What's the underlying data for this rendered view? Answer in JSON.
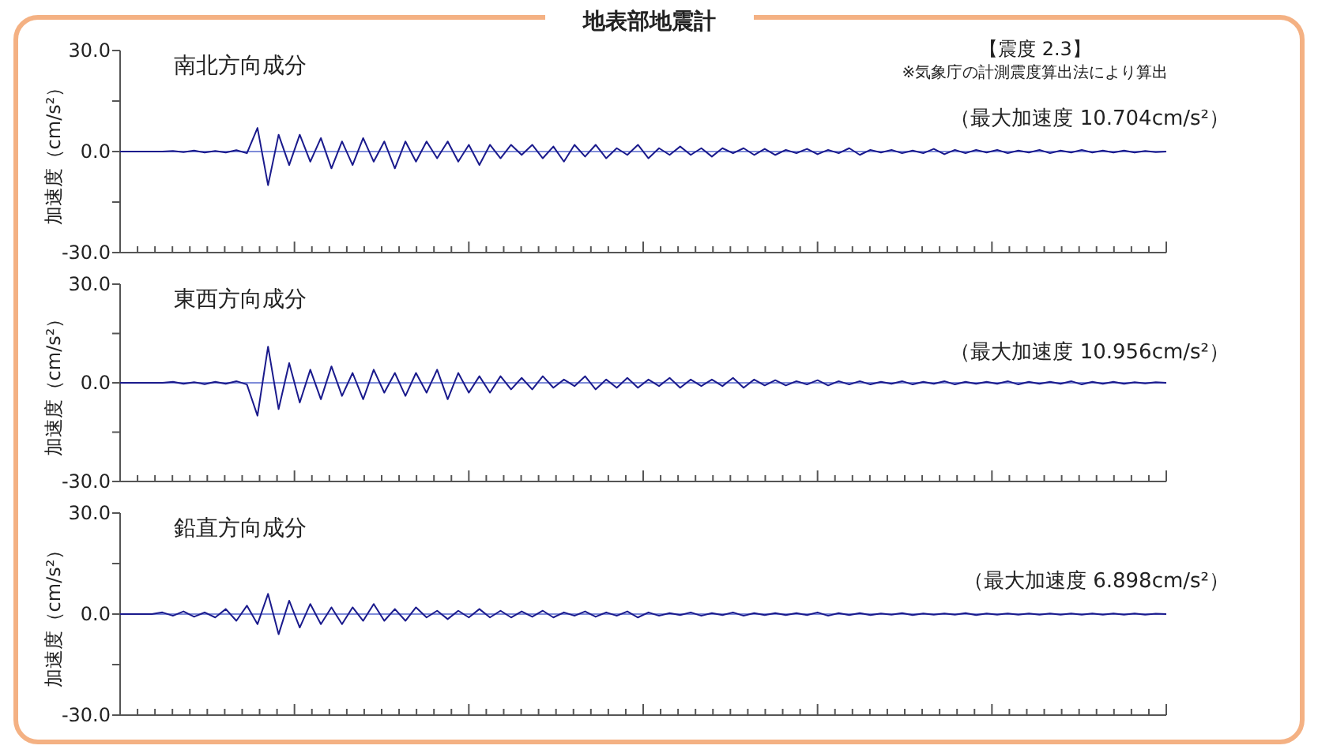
{
  "chart_data": [
    {
      "type": "line",
      "title": "南北方向成分",
      "ref_lines": [
        {
          "axis": "y",
          "value": 0,
          "color": "#5566cc"
        }
      ],
      "ylabel": "加速度（cm/s²）",
      "color": "#1a1a8c",
      "tick_labels": "y",
      "annotations": [
        "（最大加速度 10.704cm/s²）",
        "地表部地震計",
        "【震度 2.3】",
        "※気象庁の計測震度算出法により算出"
      ],
      "ylim": [
        -30,
        30
      ],
      "yticks": [
        {
          "value": -30,
          "label": "-30.0"
        },
        {
          "value": -15,
          "label": null
        },
        {
          "value": 0,
          "label": "0.0"
        },
        {
          "value": 15,
          "label": null
        },
        {
          "value": 30,
          "label": "30.0"
        }
      ],
      "categories": [
        null,
        null,
        null,
        null,
        null,
        null,
        null,
        null,
        null,
        null,
        null,
        null,
        null,
        null,
        null,
        null,
        null,
        null,
        null,
        null,
        null,
        null,
        null,
        null,
        null,
        null,
        null,
        null,
        null,
        null,
        null,
        null,
        null,
        null,
        null,
        null,
        null,
        null,
        null,
        null,
        null,
        null,
        null,
        null,
        null,
        null,
        null,
        null,
        null,
        null,
        null,
        null,
        null,
        null,
        null,
        null,
        null,
        null,
        null,
        null,
        null,
        null,
        null,
        null,
        null,
        null,
        null,
        null,
        null,
        null,
        null,
        null,
        null,
        null,
        null,
        null,
        null,
        null,
        null,
        null,
        null,
        null,
        null,
        null,
        null,
        null,
        null,
        null,
        null,
        null,
        null,
        null,
        null,
        null,
        null,
        null,
        null,
        null,
        null,
        null
      ],
      "values": [
        0,
        0,
        0,
        0,
        0,
        0.2,
        -0.2,
        0.3,
        -0.3,
        0.2,
        -0.3,
        0.4,
        -0.5,
        7,
        -10,
        5,
        -4,
        5,
        -3,
        4,
        -5,
        3,
        -4,
        4,
        -3,
        3,
        -5,
        3,
        -3,
        3,
        -2,
        3,
        -3,
        2,
        -4,
        2,
        -2,
        2,
        -1,
        2,
        -2,
        1.5,
        -3,
        2,
        -1.5,
        2,
        -2,
        1,
        -1,
        2,
        -2,
        1,
        -1,
        1.5,
        -1,
        1,
        -1.5,
        1,
        -0.5,
        1,
        -1,
        0.8,
        -1,
        0.5,
        -0.5,
        0.8,
        -0.8,
        0.5,
        -0.5,
        1,
        -1,
        0.5,
        -0.3,
        0.5,
        -0.5,
        0.3,
        -0.5,
        0.8,
        -0.8,
        0.5,
        -0.5,
        0.5,
        -0.3,
        0.5,
        -0.5,
        0.3,
        -0.3,
        0.5,
        -0.5,
        0.3,
        -0.3,
        0.5,
        -0.3,
        0.3,
        -0.3,
        0.3,
        -0.3,
        0.2,
        -0.2,
        0
      ]
    },
    {
      "type": "line",
      "title": "東西方向成分",
      "ref_lines": [
        {
          "axis": "y",
          "value": 0,
          "color": "#5566cc"
        }
      ],
      "ylabel": "加速度（cm/s²）",
      "color": "#1a1a8c",
      "tick_labels": "y",
      "annotations": [
        "（最大加速度 10.956cm/s²）"
      ],
      "ylim": [
        -30,
        30
      ],
      "yticks": [
        {
          "value": -30,
          "label": "-30.0"
        },
        {
          "value": -15,
          "label": null
        },
        {
          "value": 0,
          "label": "0.0"
        },
        {
          "value": 15,
          "label": null
        },
        {
          "value": 30,
          "label": "30.0"
        }
      ],
      "categories": [
        null,
        null,
        null,
        null,
        null,
        null,
        null,
        null,
        null,
        null,
        null,
        null,
        null,
        null,
        null,
        null,
        null,
        null,
        null,
        null,
        null,
        null,
        null,
        null,
        null,
        null,
        null,
        null,
        null,
        null,
        null,
        null,
        null,
        null,
        null,
        null,
        null,
        null,
        null,
        null,
        null,
        null,
        null,
        null,
        null,
        null,
        null,
        null,
        null,
        null,
        null,
        null,
        null,
        null,
        null,
        null,
        null,
        null,
        null,
        null,
        null,
        null,
        null,
        null,
        null,
        null,
        null,
        null,
        null,
        null,
        null,
        null,
        null,
        null,
        null,
        null,
        null,
        null,
        null,
        null,
        null,
        null,
        null,
        null,
        null,
        null,
        null,
        null,
        null,
        null,
        null,
        null,
        null,
        null,
        null,
        null,
        null,
        null,
        null,
        null
      ],
      "values": [
        0,
        0,
        0,
        0,
        0,
        0.3,
        -0.3,
        0.2,
        -0.4,
        0.3,
        -0.3,
        0.5,
        -0.5,
        -10,
        11,
        -8,
        6,
        -6,
        4,
        -5,
        5,
        -4,
        3,
        -5,
        4,
        -3,
        3,
        -4,
        3,
        -3,
        4,
        -5,
        3,
        -3,
        2,
        -3,
        2,
        -2,
        1.5,
        -2,
        2,
        -1.5,
        1,
        -1,
        2,
        -2,
        1,
        -1.5,
        1.5,
        -1.5,
        1,
        -1,
        1.5,
        -1.5,
        1,
        -1,
        1,
        -1,
        1.5,
        -1.5,
        1,
        -0.8,
        0.8,
        -0.8,
        0.5,
        -0.5,
        0.8,
        -0.8,
        0.5,
        -0.5,
        0.5,
        -0.5,
        0.3,
        -0.3,
        0.5,
        -0.5,
        0.3,
        -0.3,
        0.5,
        -0.5,
        0.3,
        -0.3,
        0.3,
        -0.3,
        0.5,
        -0.5,
        0.3,
        -0.3,
        0.3,
        -0.3,
        0.5,
        -0.5,
        0.3,
        -0.3,
        0.3,
        -0.3,
        0.2,
        -0.2,
        0.2,
        0
      ]
    },
    {
      "type": "line",
      "title": "鉛直方向成分",
      "ref_lines": [
        {
          "axis": "y",
          "value": 0,
          "color": "#5566cc"
        }
      ],
      "ylabel": "加速度（cm/s²）",
      "color": "#1a1a8c",
      "tick_labels": "y",
      "annotations": [
        "（最大加速度 6.898cm/s²）"
      ],
      "ylim": [
        -30,
        30
      ],
      "yticks": [
        {
          "value": -30,
          "label": "-30.0"
        },
        {
          "value": -15,
          "label": null
        },
        {
          "value": 0,
          "label": "0.0"
        },
        {
          "value": 15,
          "label": null
        },
        {
          "value": 30,
          "label": "30.0"
        }
      ],
      "categories": [
        null,
        null,
        null,
        null,
        null,
        null,
        null,
        null,
        null,
        null,
        null,
        null,
        null,
        null,
        null,
        null,
        null,
        null,
        null,
        null,
        null,
        null,
        null,
        null,
        null,
        null,
        null,
        null,
        null,
        null,
        null,
        null,
        null,
        null,
        null,
        null,
        null,
        null,
        null,
        null,
        null,
        null,
        null,
        null,
        null,
        null,
        null,
        null,
        null,
        null,
        null,
        null,
        null,
        null,
        null,
        null,
        null,
        null,
        null,
        null,
        null,
        null,
        null,
        null,
        null,
        null,
        null,
        null,
        null,
        null,
        null,
        null,
        null,
        null,
        null,
        null,
        null,
        null,
        null,
        null,
        null,
        null,
        null,
        null,
        null,
        null,
        null,
        null,
        null,
        null,
        null,
        null,
        null,
        null,
        null,
        null,
        null,
        null,
        null,
        null
      ],
      "values": [
        0,
        0,
        0,
        0,
        0.5,
        -0.5,
        0.8,
        -0.8,
        0.5,
        -1,
        1.5,
        -2,
        2.5,
        -3,
        6,
        -6,
        4,
        -4,
        3,
        -3,
        2,
        -3,
        2,
        -2,
        3,
        -2,
        1.5,
        -2,
        2,
        -1,
        1,
        -1.5,
        1,
        -1,
        1.5,
        -1,
        1,
        -1,
        0.8,
        -0.8,
        1,
        -1,
        0.5,
        -0.5,
        0.8,
        -0.8,
        0.5,
        -0.5,
        0.8,
        -1,
        0.5,
        -0.5,
        0.3,
        -0.3,
        0.5,
        -0.5,
        0.3,
        -0.3,
        0.5,
        -0.5,
        0.3,
        -0.3,
        0.3,
        -0.3,
        0.3,
        -0.3,
        0.5,
        -0.5,
        0.3,
        -0.3,
        0.3,
        -0.3,
        0.2,
        -0.2,
        0.3,
        -0.3,
        0.2,
        -0.2,
        0.2,
        -0.2,
        0.3,
        -0.3,
        0.2,
        -0.2,
        0.2,
        -0.2,
        0.2,
        -0.2,
        0.2,
        -0.2,
        0.2,
        -0.2,
        0.2,
        -0.2,
        0.2,
        -0.2,
        0.2,
        -0.2,
        0.1,
        0
      ]
    }
  ]
}
